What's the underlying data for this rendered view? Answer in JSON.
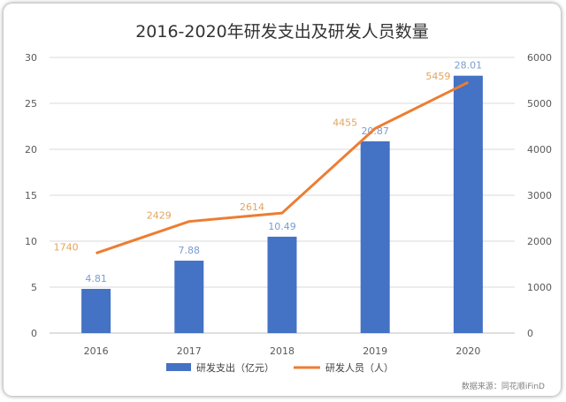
{
  "chart_data": {
    "type": "bar",
    "title": "2016-2020年研发支出及研发人员数量",
    "categories": [
      "2016",
      "2017",
      "2018",
      "2019",
      "2020"
    ],
    "series": [
      {
        "name": "研发支出（亿元）",
        "type": "bar",
        "axis": "left",
        "color": "#4472c4",
        "values": [
          4.81,
          7.88,
          10.49,
          20.87,
          28.01
        ],
        "labels": [
          "4.81",
          "7.88",
          "10.49",
          "20.87",
          "28.01"
        ]
      },
      {
        "name": "研发人员（人）",
        "type": "line",
        "axis": "right",
        "color": "#ed7d31",
        "values": [
          1740,
          2429,
          2614,
          4455,
          5459
        ],
        "labels": [
          "1740",
          "2429",
          "2614",
          "4455",
          "5459"
        ]
      }
    ],
    "y_left": {
      "lim": [
        0,
        30
      ],
      "ticks": [
        "0",
        "5",
        "10",
        "15",
        "20",
        "25",
        "30"
      ]
    },
    "y_right": {
      "lim": [
        0,
        6000
      ],
      "ticks": [
        "0",
        "1000",
        "2000",
        "3000",
        "4000",
        "5000",
        "6000"
      ]
    },
    "grid": true,
    "legend_position": "bottom",
    "source": "数据来源：同花顺iFinD"
  }
}
